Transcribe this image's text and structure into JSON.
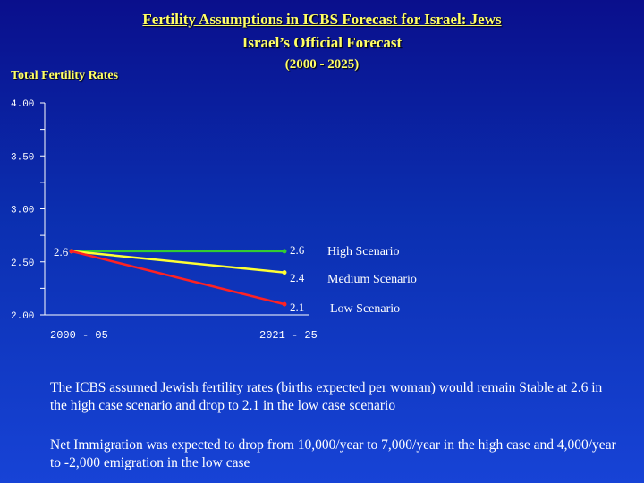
{
  "header": {
    "title_line1": "Fertility Assumptions in ICBS Forecast for Israel:  Jews",
    "title_line2": "Israel’s Official Forecast",
    "title_line3": "(2000 - 2025)"
  },
  "chart_data": {
    "type": "line",
    "ylabel": "Total Fertility Rates",
    "categories": [
      "2000 - 05",
      "2021 - 25"
    ],
    "ylim": [
      2.0,
      4.0
    ],
    "y_ticks": [
      "4.00",
      "3.50",
      "3.00",
      "2.50",
      "2.00"
    ],
    "start_label": "2.6",
    "series": [
      {
        "name": "High Scenario",
        "values": [
          2.6,
          2.6
        ],
        "end_label": "2.6",
        "color": "#33cc33"
      },
      {
        "name": "Medium Scenario",
        "values": [
          2.6,
          2.4
        ],
        "end_label": "2.4",
        "color": "#ffff33"
      },
      {
        "name": "Low Scenario",
        "values": [
          2.6,
          2.1
        ],
        "end_label": "2.1",
        "color": "#ff2222"
      }
    ],
    "legend": "right",
    "grid": false
  },
  "notes": {
    "paragraph1": "The ICBS assumed Jewish fertility rates (births expected per woman) would remain Stable at 2.6 in the high case scenario and drop to 2.1 in the low case scenario",
    "paragraph2": "Net Immigration was expected to drop from 10,000/year to 7,000/year in the high case and 4,000/year to -2,000 emigration in the low case"
  }
}
